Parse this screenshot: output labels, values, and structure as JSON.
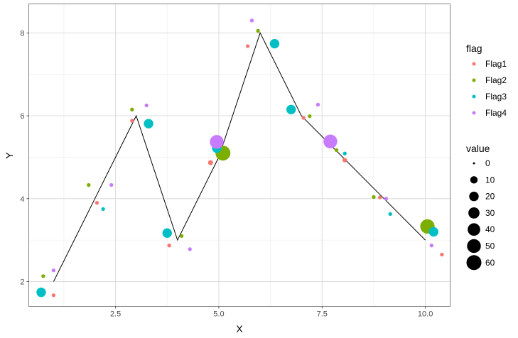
{
  "chart_data": {
    "type": "scatter",
    "xlabel": "X",
    "ylabel": "Y",
    "xlim": [
      0.4,
      10.6
    ],
    "ylim": [
      1.4,
      8.7
    ],
    "x_ticks": [
      2.5,
      5.0,
      7.5,
      10.0
    ],
    "x_tick_labels": [
      "2.5",
      "5.0",
      "7.5",
      "10.0"
    ],
    "y_ticks": [
      2,
      4,
      6,
      8
    ],
    "y_tick_labels": [
      "2",
      "4",
      "6",
      "8"
    ],
    "grid": true,
    "line": {
      "color": "#000000",
      "x": [
        1,
        2,
        3,
        4,
        5,
        6,
        7,
        8,
        9,
        10
      ],
      "y": [
        2.0,
        4.0,
        6.0,
        3.0,
        5.0,
        8.0,
        6.0,
        5.0,
        4.0,
        3.0
      ]
    },
    "series": [
      {
        "name": "Flag1",
        "color": "#F8766D",
        "points": [
          {
            "x": 1.0,
            "y": 1.67,
            "value": 1
          },
          {
            "x": 2.05,
            "y": 3.9,
            "value": 1
          },
          {
            "x": 2.9,
            "y": 5.88,
            "value": 1
          },
          {
            "x": 3.8,
            "y": 2.87,
            "value": 1
          },
          {
            "x": 4.8,
            "y": 4.87,
            "value": 3
          },
          {
            "x": 5.7,
            "y": 7.68,
            "value": 1
          },
          {
            "x": 7.05,
            "y": 5.95,
            "value": 1
          },
          {
            "x": 8.05,
            "y": 4.93,
            "value": 2
          },
          {
            "x": 8.9,
            "y": 4.03,
            "value": 1
          },
          {
            "x": 10.4,
            "y": 2.65,
            "value": 1
          }
        ]
      },
      {
        "name": "Flag2",
        "color": "#7CAE00",
        "points": [
          {
            "x": 0.75,
            "y": 2.13,
            "value": 1
          },
          {
            "x": 1.85,
            "y": 4.33,
            "value": 1
          },
          {
            "x": 2.9,
            "y": 6.15,
            "value": 1
          },
          {
            "x": 4.1,
            "y": 3.1,
            "value": 1
          },
          {
            "x": 5.1,
            "y": 5.1,
            "value": 60
          },
          {
            "x": 5.95,
            "y": 8.05,
            "value": 1
          },
          {
            "x": 7.2,
            "y": 5.99,
            "value": 1
          },
          {
            "x": 7.85,
            "y": 5.17,
            "value": 1
          },
          {
            "x": 8.75,
            "y": 4.04,
            "value": 1
          },
          {
            "x": 10.05,
            "y": 3.33,
            "value": 55
          }
        ]
      },
      {
        "name": "Flag3",
        "color": "#00BFC4",
        "points": [
          {
            "x": 0.7,
            "y": 1.74,
            "value": 20
          },
          {
            "x": 2.2,
            "y": 3.75,
            "value": 1
          },
          {
            "x": 3.3,
            "y": 5.81,
            "value": 20
          },
          {
            "x": 3.75,
            "y": 3.17,
            "value": 20
          },
          {
            "x": 4.95,
            "y": 5.22,
            "value": 20
          },
          {
            "x": 6.35,
            "y": 7.74,
            "value": 20
          },
          {
            "x": 6.75,
            "y": 6.15,
            "value": 20
          },
          {
            "x": 8.05,
            "y": 5.09,
            "value": 1
          },
          {
            "x": 9.15,
            "y": 3.63,
            "value": 1
          },
          {
            "x": 10.2,
            "y": 3.2,
            "value": 20
          }
        ]
      },
      {
        "name": "Flag4",
        "color": "#C77CFF",
        "points": [
          {
            "x": 1.0,
            "y": 2.27,
            "value": 1
          },
          {
            "x": 2.4,
            "y": 4.33,
            "value": 1
          },
          {
            "x": 3.25,
            "y": 6.25,
            "value": 1
          },
          {
            "x": 4.3,
            "y": 2.78,
            "value": 1
          },
          {
            "x": 4.95,
            "y": 5.37,
            "value": 50
          },
          {
            "x": 5.8,
            "y": 8.3,
            "value": 1
          },
          {
            "x": 7.4,
            "y": 6.27,
            "value": 1
          },
          {
            "x": 7.7,
            "y": 5.38,
            "value": 50
          },
          {
            "x": 9.05,
            "y": 4.0,
            "value": 1
          },
          {
            "x": 10.15,
            "y": 2.87,
            "value": 1
          }
        ]
      }
    ],
    "legend": {
      "placement": "right",
      "color_title": "flag",
      "color_entries": [
        {
          "label": "Flag1",
          "color": "#F8766D"
        },
        {
          "label": "Flag2",
          "color": "#7CAE00"
        },
        {
          "label": "Flag3",
          "color": "#00BFC4"
        },
        {
          "label": "Flag4",
          "color": "#C77CFF"
        }
      ],
      "size_title": "value",
      "size_entries": [
        {
          "label": "0",
          "value": 0
        },
        {
          "label": "10",
          "value": 10
        },
        {
          "label": "20",
          "value": 20
        },
        {
          "label": "30",
          "value": 30
        },
        {
          "label": "40",
          "value": 40
        },
        {
          "label": "50",
          "value": 50
        },
        {
          "label": "60",
          "value": 60
        }
      ]
    }
  }
}
